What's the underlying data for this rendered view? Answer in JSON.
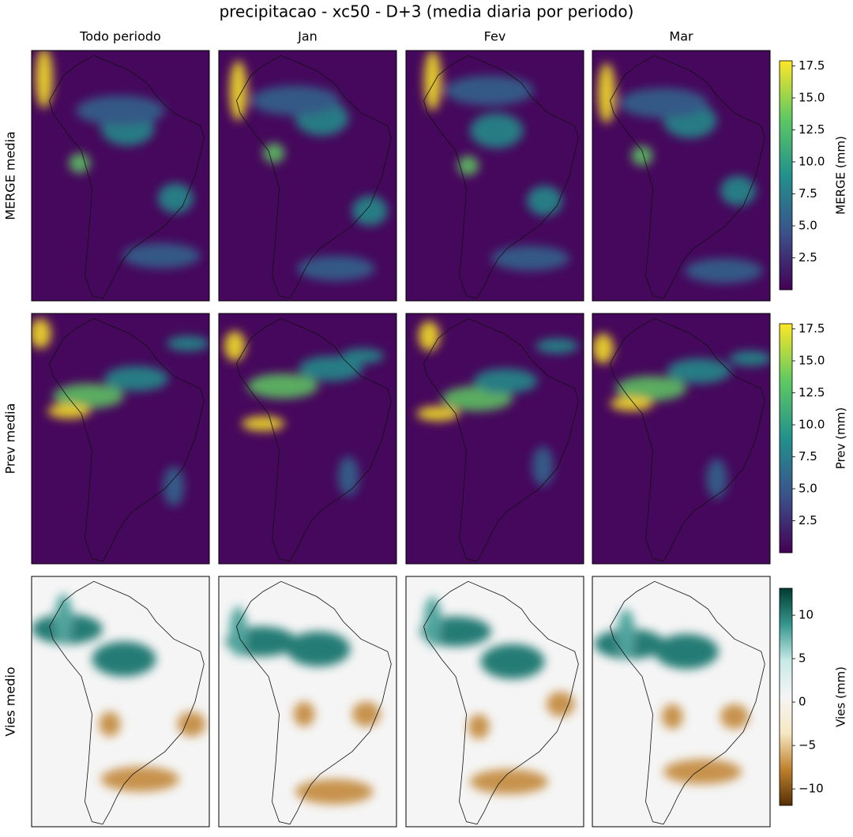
{
  "title": "precipitacao - xc50 - D+3 (media diaria por periodo)",
  "columns": [
    "Todo periodo",
    "Jan",
    "Fev",
    "Mar"
  ],
  "rows": [
    {
      "label": "MERGE media",
      "colorbar": {
        "label": "MERGE (mm)",
        "lim": [
          0,
          17.9
        ],
        "colors": [
          "#440154",
          "#3b528b",
          "#21918c",
          "#5ec962",
          "#fde725"
        ],
        "ticks": [
          2.5,
          {
            "value": 5,
            "label": "5.0"
          },
          7.5,
          {
            "value": 10,
            "label": "10.0"
          },
          12.5,
          {
            "value": 15,
            "label": "15.0"
          },
          17.5
        ]
      }
    },
    {
      "label": "Prev media",
      "colorbar": {
        "label": "Prev (mm)",
        "lim": [
          0,
          17.9
        ],
        "colors": [
          "#440154",
          "#3b528b",
          "#21918c",
          "#5ec962",
          "#fde725"
        ],
        "ticks": [
          2.5,
          {
            "value": 5,
            "label": "5.0"
          },
          7.5,
          {
            "value": 10,
            "label": "10.0"
          },
          12.5,
          {
            "value": 15,
            "label": "15.0"
          },
          17.5
        ]
      }
    },
    {
      "label": "Vies medio",
      "colorbar": {
        "label": "Vies (mm)",
        "lim": [
          -11.9,
          13.1
        ],
        "colors": [
          "#543005",
          "#bf812d",
          "#f6e8c3",
          "#f5f5f5",
          "#c7eae5",
          "#35978f",
          "#003c30"
        ],
        "ticks": [
          {
            "value": -10,
            "label": "−10"
          },
          {
            "value": -5,
            "label": "−5"
          },
          0,
          5,
          10
        ]
      }
    }
  ]
}
